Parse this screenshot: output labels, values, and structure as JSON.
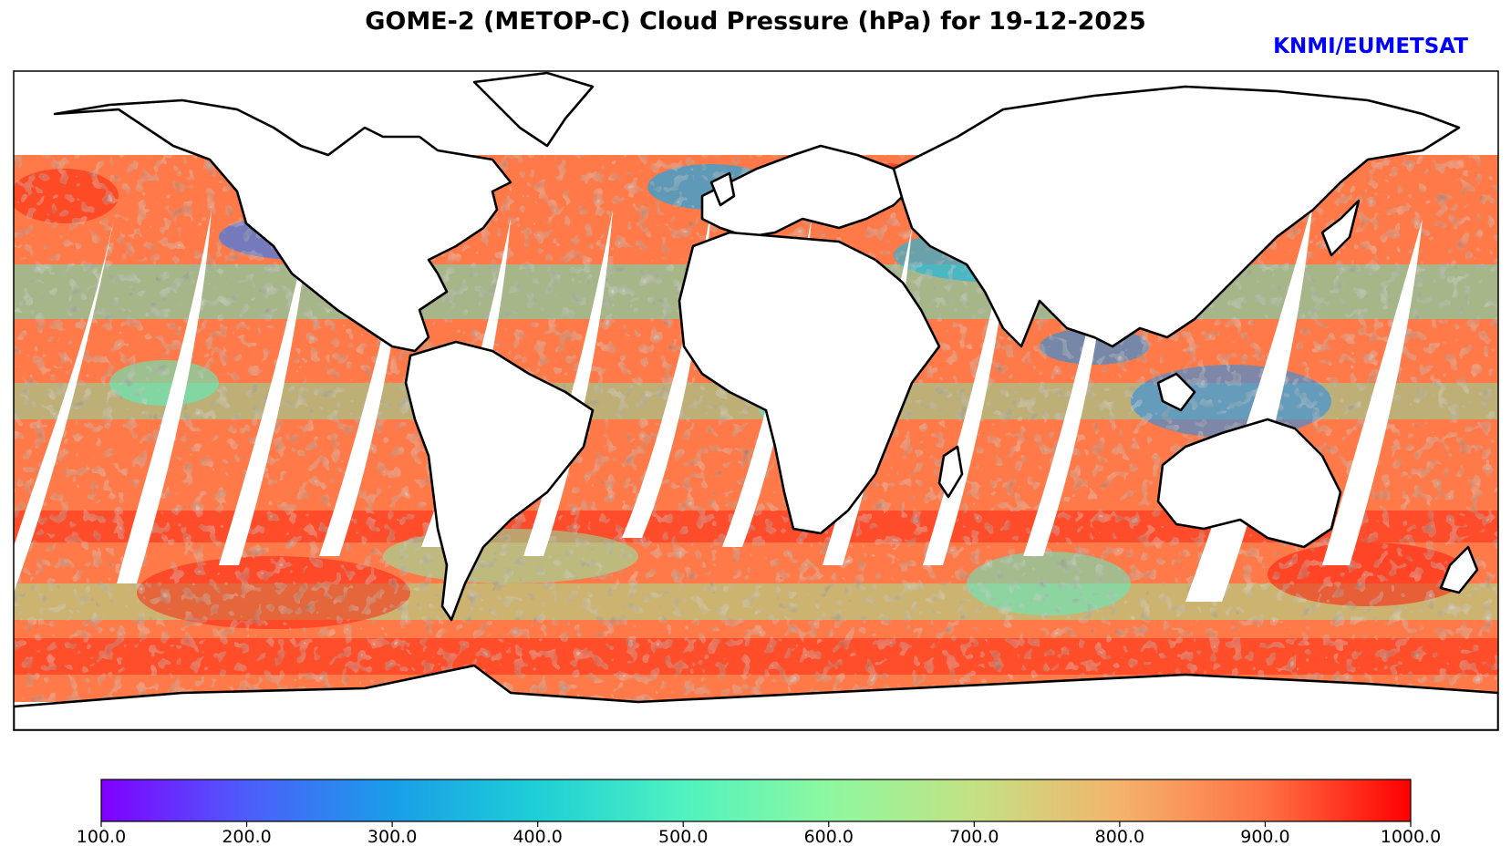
{
  "title": "GOME-2 (METOP-C) Cloud Pressure (hPa) for 19-12-2025",
  "credit": "KNMI/EUMETSAT",
  "map": {
    "projection": "equirectangular",
    "variable": "Cloud Pressure (hPa)",
    "ocean_color": "#ffffff",
    "coastline_color": "#000000"
  },
  "colorbar": {
    "colormap": "rainbow",
    "min": 100.0,
    "max": 1000.0,
    "stops": [
      "#8000ff",
      "#4d5dfa",
      "#1a9de8",
      "#1ecfd6",
      "#4ff2c0",
      "#8ef8a0",
      "#c4e184",
      "#f4b36c",
      "#ff7145",
      "#ff0000"
    ],
    "ticks": [
      "100.0",
      "200.0",
      "300.0",
      "400.0",
      "500.0",
      "600.0",
      "700.0",
      "800.0",
      "900.0",
      "1000.0"
    ]
  }
}
